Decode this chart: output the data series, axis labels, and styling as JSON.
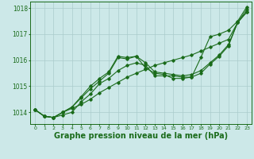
{
  "background_color": "#cce8e8",
  "grid_color": "#aacccc",
  "line_color": "#1a6b1a",
  "xlabel": "Graphe pression niveau de la mer (hPa)",
  "xlim": [
    -0.5,
    23.5
  ],
  "ylim": [
    1013.55,
    1018.25
  ],
  "yticks": [
    1014,
    1015,
    1016,
    1017,
    1018
  ],
  "xticks": [
    0,
    1,
    2,
    3,
    4,
    5,
    6,
    7,
    8,
    9,
    10,
    11,
    12,
    13,
    14,
    15,
    16,
    17,
    18,
    19,
    20,
    21,
    22,
    23
  ],
  "series": [
    [
      1014.1,
      1013.85,
      1013.8,
      1014.0,
      1014.15,
      1014.3,
      1014.5,
      1014.75,
      1014.95,
      1015.15,
      1015.35,
      1015.5,
      1015.65,
      1015.8,
      1015.9,
      1016.0,
      1016.1,
      1016.2,
      1016.35,
      1016.5,
      1016.65,
      1016.8,
      1017.45,
      1017.95
    ],
    [
      1014.1,
      1013.85,
      1013.8,
      1014.0,
      1014.2,
      1014.6,
      1015.0,
      1015.3,
      1015.55,
      1016.15,
      1016.1,
      1016.15,
      1015.9,
      1015.55,
      1015.5,
      1015.45,
      1015.4,
      1015.45,
      1015.6,
      1015.9,
      1016.2,
      1016.6,
      1017.45,
      1017.85
    ],
    [
      1014.1,
      1013.85,
      1013.8,
      1014.0,
      1014.2,
      1014.55,
      1014.9,
      1015.2,
      1015.5,
      1016.1,
      1016.05,
      1016.15,
      1015.7,
      1015.5,
      1015.45,
      1015.3,
      1015.3,
      1015.35,
      1015.5,
      1015.85,
      1016.15,
      1016.55,
      1017.45,
      1017.85
    ],
    [
      1014.1,
      1013.85,
      1013.8,
      1013.9,
      1014.0,
      1014.4,
      1014.7,
      1015.1,
      1015.3,
      1015.6,
      1015.8,
      1015.9,
      1015.8,
      1015.4,
      1015.4,
      1015.4,
      1015.35,
      1015.35,
      1016.1,
      1016.9,
      1017.0,
      1017.15,
      1017.5,
      1018.05
    ]
  ]
}
